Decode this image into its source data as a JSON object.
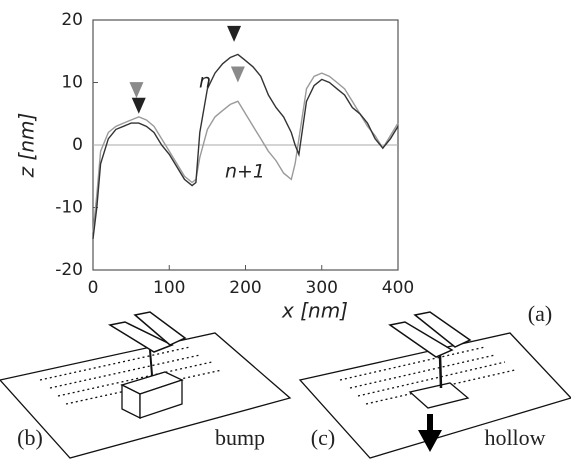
{
  "chart_data": {
    "type": "line",
    "xlabel": "x [nm]",
    "ylabel": "z [nm]",
    "panel_label": "(a)",
    "x": [
      0,
      5,
      10,
      20,
      30,
      40,
      50,
      60,
      70,
      80,
      90,
      100,
      110,
      120,
      130,
      135,
      140,
      150,
      160,
      170,
      180,
      190,
      200,
      210,
      220,
      230,
      240,
      250,
      260,
      265,
      270,
      280,
      290,
      300,
      310,
      320,
      330,
      340,
      350,
      360,
      370,
      380,
      390,
      400
    ],
    "series": [
      {
        "name": "n",
        "color": "#333333",
        "values": [
          -15,
          -10,
          -3,
          1,
          2.5,
          3,
          3.5,
          3.5,
          3,
          2,
          0,
          -1.5,
          -3.5,
          -5.5,
          -6.5,
          -6,
          2,
          9,
          11.5,
          13,
          14,
          14.5,
          13.5,
          12.5,
          11,
          8,
          6,
          4.5,
          2,
          0,
          -1.5,
          7,
          9.5,
          10.5,
          10,
          9,
          8,
          6,
          5,
          3.5,
          1,
          -0.5,
          1,
          3
        ]
      },
      {
        "name": "n+1",
        "color": "#9a9a9a",
        "values": [
          -14,
          -8,
          -1,
          2,
          3,
          3.5,
          4,
          4.5,
          4,
          3,
          1,
          -1,
          -3,
          -5,
          -6,
          -5.5,
          -2,
          2.5,
          4.5,
          5.5,
          6.5,
          7,
          5,
          3,
          1,
          -1,
          -2.5,
          -4.5,
          -5.5,
          -3,
          1,
          9,
          11,
          11.5,
          11,
          10,
          9,
          7,
          5,
          3,
          1.5,
          -0.5,
          1.5,
          3.5
        ]
      }
    ],
    "markers": [
      {
        "x": 57,
        "y": 7.5,
        "color": "#8a8a8a"
      },
      {
        "x": 60,
        "y": 5,
        "color": "#222222"
      },
      {
        "x": 190,
        "y": 10,
        "color": "#8a8a8a"
      },
      {
        "x": 185,
        "y": 16.5,
        "color": "#222222"
      }
    ],
    "xlim": [
      0,
      400
    ],
    "xticks": [
      0,
      100,
      200,
      300,
      400
    ],
    "ylim": [
      -20,
      20
    ],
    "yticks": [
      -20,
      -10,
      0,
      10,
      20
    ],
    "zero_line": true
  },
  "panels": [
    {
      "label": "(b)",
      "caption": "bump"
    },
    {
      "label": "(c)",
      "caption": "hollow"
    }
  ]
}
